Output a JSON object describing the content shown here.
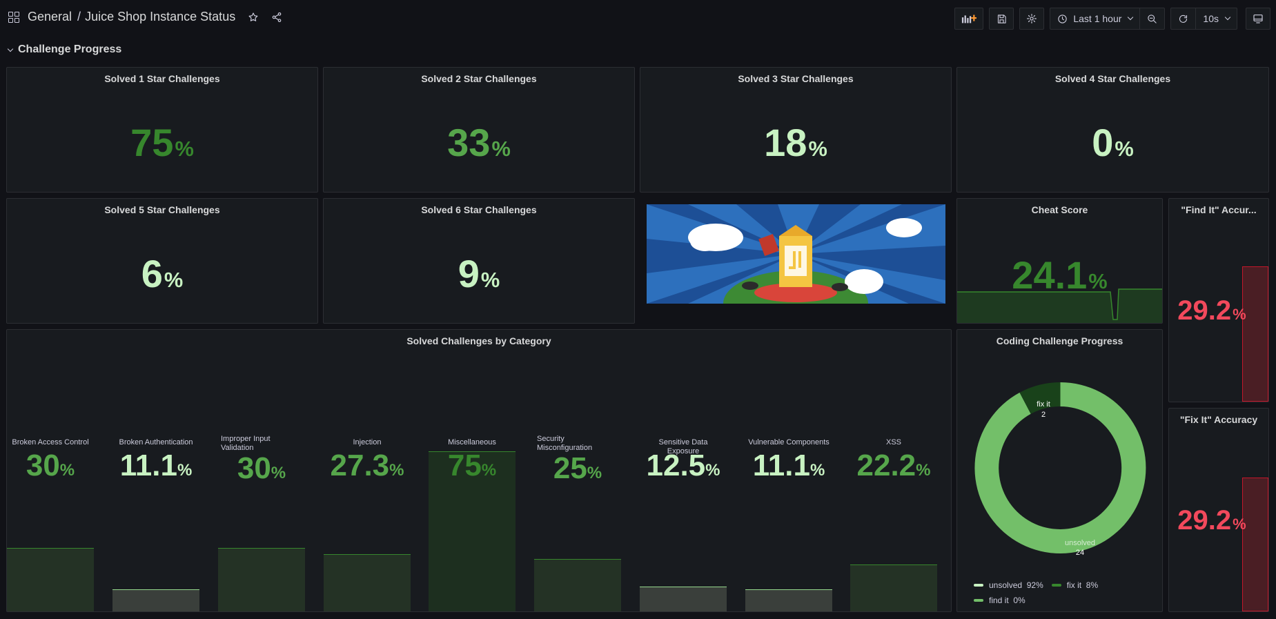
{
  "header": {
    "folder": "General",
    "separator": "/",
    "dashboard_title": "Juice Shop Instance Status",
    "time_range": "Last 1 hour",
    "refresh_interval": "10s"
  },
  "row": {
    "title": "Challenge Progress"
  },
  "stars": [
    {
      "title": "Solved 1 Star Challenges",
      "value": "75",
      "unit": "%"
    },
    {
      "title": "Solved 2 Star Challenges",
      "value": "33",
      "unit": "%"
    },
    {
      "title": "Solved 3 Star Challenges",
      "value": "18",
      "unit": "%"
    },
    {
      "title": "Solved 4 Star Challenges",
      "value": "0",
      "unit": "%"
    },
    {
      "title": "Solved 5 Star Challenges",
      "value": "6",
      "unit": "%"
    },
    {
      "title": "Solved 6 Star Challenges",
      "value": "9",
      "unit": "%"
    }
  ],
  "cheat": {
    "title": "Cheat Score",
    "value": "24.1",
    "unit": "%"
  },
  "find_it": {
    "title": "\"Find It\" Accur...",
    "value": "29.2",
    "unit": "%",
    "fill": 0.68
  },
  "fix_it": {
    "title": "\"Fix It\" Accuracy",
    "value": "29.2",
    "unit": "%",
    "fill": 0.68
  },
  "categories": {
    "title": "Solved Challenges by Category",
    "items": [
      {
        "name": "Broken Access Control",
        "value": "30",
        "unit": "%",
        "fill": 0.3
      },
      {
        "name": "Broken Authentication",
        "value": "11.1",
        "unit": "%",
        "fill": 0.111
      },
      {
        "name": "Improper Input Validation",
        "value": "30",
        "unit": "%",
        "fill": 0.3
      },
      {
        "name": "Injection",
        "value": "27.3",
        "unit": "%",
        "fill": 0.273
      },
      {
        "name": "Miscellaneous",
        "value": "75",
        "unit": "%",
        "fill": 0.75
      },
      {
        "name": "Security Misconfiguration",
        "value": "25",
        "unit": "%",
        "fill": 0.25
      },
      {
        "name": "Sensitive Data Exposure",
        "value": "12.5",
        "unit": "%",
        "fill": 0.125
      },
      {
        "name": "Vulnerable Components",
        "value": "11.1",
        "unit": "%",
        "fill": 0.111
      },
      {
        "name": "XSS",
        "value": "22.2",
        "unit": "%",
        "fill": 0.222
      }
    ]
  },
  "coding": {
    "title": "Coding Challenge Progress",
    "slices": [
      {
        "name": "unsolved",
        "value": 24,
        "percent": "92%",
        "color": "#73bf69"
      },
      {
        "name": "fix it",
        "value": 2,
        "percent": "8%",
        "color": "#19421a"
      },
      {
        "name": "find it",
        "value": 0,
        "percent": "0%",
        "color": "#96d98d"
      }
    ],
    "label_fix": "fix it",
    "label_fix_value": "2",
    "label_unsolved": "unsolved",
    "label_unsolved_value": "24"
  },
  "colors": {
    "background": "#111217",
    "panel": "#181b1f",
    "green": "#37872d",
    "light_green": "#56a64b",
    "pale_green": "#c8f2c2",
    "red": "#f2495c"
  }
}
